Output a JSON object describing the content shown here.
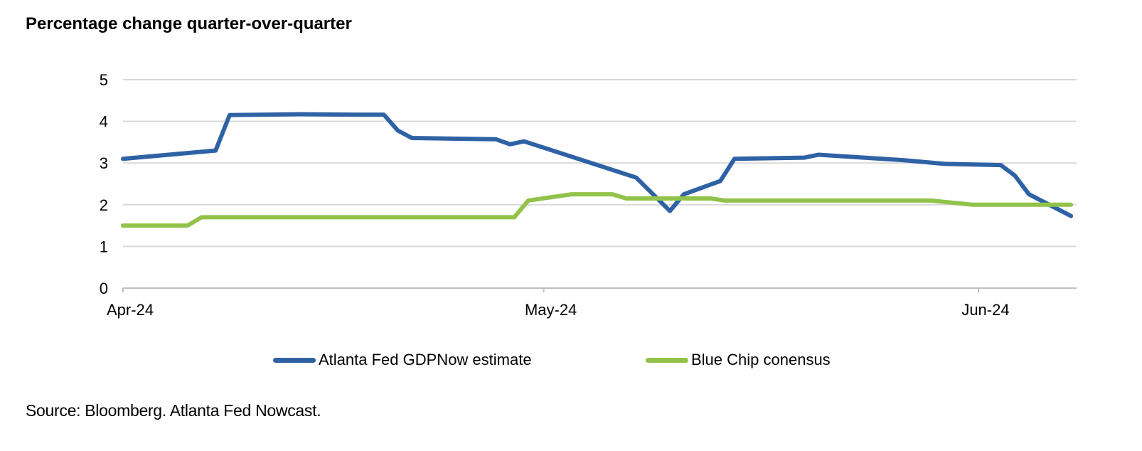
{
  "title": "Percentage change quarter-over-quarter",
  "source": "Source: Bloomberg. Atlanta Fed Nowcast.",
  "colors": {
    "gdpnow": "#2E62A4",
    "bluechip": "#92C24A",
    "grid": "#D9D9D9",
    "axis": "#BFBFBF",
    "text": "#000000"
  },
  "chart_data": {
    "type": "line",
    "title": "Percentage change quarter-over-quarter",
    "xlabel": "",
    "ylabel": "",
    "x_unit": "days since Apr-1-2024",
    "xlim": [
      0,
      68
    ],
    "ylim": [
      0,
      5
    ],
    "y_ticks": [
      0,
      1,
      2,
      3,
      4,
      5
    ],
    "y_tick_labels": [
      "0",
      "1",
      "2",
      "3",
      "4",
      "5"
    ],
    "x_ticks": [
      {
        "label": "Apr-24",
        "x": 0
      },
      {
        "label": "May-24",
        "x": 30
      },
      {
        "label": "Jun-24",
        "x": 61
      }
    ],
    "grid": "horizontal",
    "legend_position": "bottom",
    "series": [
      {
        "name": "Atlanta Fed GDPNow estimate",
        "color": "#2E62A4",
        "x": [
          0,
          6.6,
          7.6,
          12.6,
          16.6,
          18.6,
          19.6,
          20.6,
          26.6,
          27.6,
          28.6,
          36.6,
          39,
          40,
          42.6,
          43.6,
          48.6,
          49.6,
          55.6,
          58.6,
          62.6,
          63.6,
          64.6,
          67.6
        ],
        "y": [
          3.1,
          3.3,
          4.15,
          4.17,
          4.16,
          4.16,
          3.78,
          3.6,
          3.57,
          3.45,
          3.52,
          2.65,
          1.85,
          2.25,
          2.57,
          3.1,
          3.13,
          3.2,
          3.07,
          2.98,
          2.95,
          2.7,
          2.25,
          1.73
        ]
      },
      {
        "name": "Blue Chip conensus",
        "color": "#92C24A",
        "x": [
          0,
          4.6,
          5.6,
          27.9,
          28.9,
          32,
          34.9,
          35.9,
          41.9,
          42.9,
          57.6,
          60.6,
          67.6
        ],
        "y": [
          1.5,
          1.5,
          1.7,
          1.7,
          2.1,
          2.25,
          2.25,
          2.15,
          2.15,
          2.1,
          2.1,
          2.0,
          2.0
        ]
      }
    ]
  }
}
